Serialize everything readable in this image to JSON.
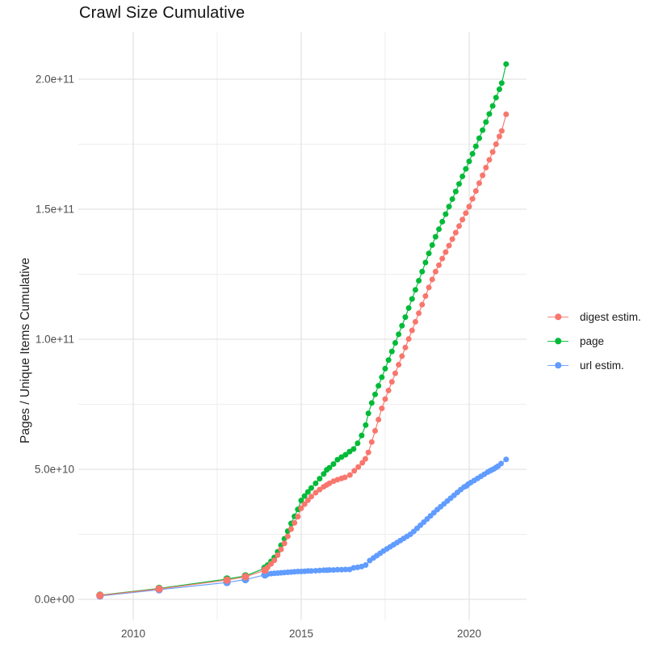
{
  "chart": {
    "title": "Crawl Size Cumulative",
    "y_axis_title": "Pages / Unique Items Cumulative"
  },
  "legend": {
    "items": [
      {
        "label": "digest estim.",
        "color": "#F8766D"
      },
      {
        "label": "page",
        "color": "#00BA38"
      },
      {
        "label": "url estim.",
        "color": "#619CFF"
      }
    ]
  },
  "chart_data": {
    "type": "scatter",
    "title": "Crawl Size Cumulative",
    "xlabel": "",
    "ylabel": "Pages / Unique Items Cumulative",
    "grid": true,
    "legend_position": "right",
    "value_unit": "items, values listed in billions (1e9)",
    "xlim": [
      2008.4,
      2021.7
    ],
    "ylim_billions": [
      -7,
      218
    ],
    "x_ticks": [
      {
        "label": "2010",
        "value": 2010
      },
      {
        "label": "2015",
        "value": 2015
      },
      {
        "label": "2020",
        "value": 2020
      }
    ],
    "x_minor": [
      2012.5,
      2017.5
    ],
    "y_ticks": [
      {
        "label": "0.0e+00",
        "value": 0
      },
      {
        "label": "5.0e+10",
        "value": 50
      },
      {
        "label": "1.0e+11",
        "value": 100
      },
      {
        "label": "1.5e+11",
        "value": 150
      },
      {
        "label": "2.0e+11",
        "value": 200
      }
    ],
    "y_minor": [
      25,
      75,
      125,
      175
    ],
    "series": [
      {
        "name": "digest estim.",
        "color": "#F8766D",
        "points": [
          [
            2009.01,
            1.5
          ],
          [
            2010.77,
            4.0
          ],
          [
            2012.79,
            7.4
          ],
          [
            2013.34,
            8.7
          ],
          [
            2013.92,
            11.2
          ],
          [
            2014.0,
            12.3
          ],
          [
            2014.1,
            13.6
          ],
          [
            2014.2,
            15.0
          ],
          [
            2014.3,
            17.0
          ],
          [
            2014.4,
            19.2
          ],
          [
            2014.5,
            21.5
          ],
          [
            2014.6,
            24.2
          ],
          [
            2014.7,
            27.0
          ],
          [
            2014.8,
            29.4
          ],
          [
            2014.9,
            31.8
          ],
          [
            2015.0,
            35.0
          ],
          [
            2015.1,
            36.6
          ],
          [
            2015.2,
            38.1
          ],
          [
            2015.3,
            39.5
          ],
          [
            2015.43,
            41.0
          ],
          [
            2015.55,
            42.2
          ],
          [
            2015.67,
            43.3
          ],
          [
            2015.76,
            44.0
          ],
          [
            2015.84,
            44.6
          ],
          [
            2015.96,
            45.4
          ],
          [
            2016.08,
            46.0
          ],
          [
            2016.2,
            46.5
          ],
          [
            2016.3,
            46.9
          ],
          [
            2016.45,
            47.8
          ],
          [
            2016.58,
            49.4
          ],
          [
            2016.7,
            50.9
          ],
          [
            2016.82,
            52.5
          ],
          [
            2016.91,
            54.0
          ],
          [
            2017.0,
            56.5
          ],
          [
            2017.1,
            60.5
          ],
          [
            2017.2,
            64.8
          ],
          [
            2017.3,
            69.1
          ],
          [
            2017.4,
            73.4
          ],
          [
            2017.5,
            77.0
          ],
          [
            2017.6,
            80.3
          ],
          [
            2017.7,
            83.6
          ],
          [
            2017.8,
            86.9
          ],
          [
            2017.9,
            90.2
          ],
          [
            2018.0,
            93.5
          ],
          [
            2018.1,
            96.8
          ],
          [
            2018.2,
            100.1
          ],
          [
            2018.3,
            103.4
          ],
          [
            2018.4,
            106.7
          ],
          [
            2018.5,
            110.0
          ],
          [
            2018.6,
            113.3
          ],
          [
            2018.7,
            116.6
          ],
          [
            2018.8,
            119.9
          ],
          [
            2018.9,
            123.0
          ],
          [
            2019.0,
            126.0
          ],
          [
            2019.1,
            128.5
          ],
          [
            2019.2,
            131.0
          ],
          [
            2019.3,
            133.5
          ],
          [
            2019.4,
            136.0
          ],
          [
            2019.5,
            138.5
          ],
          [
            2019.6,
            141.0
          ],
          [
            2019.7,
            143.5
          ],
          [
            2019.8,
            146.0
          ],
          [
            2019.9,
            148.5
          ],
          [
            2020.0,
            151.0
          ],
          [
            2020.1,
            154.0
          ],
          [
            2020.2,
            157.0
          ],
          [
            2020.3,
            160.0
          ],
          [
            2020.4,
            163.0
          ],
          [
            2020.5,
            166.0
          ],
          [
            2020.6,
            169.0
          ],
          [
            2020.7,
            172.0
          ],
          [
            2020.8,
            175.0
          ],
          [
            2020.9,
            178.0
          ],
          [
            2020.97,
            180.1
          ],
          [
            2021.1,
            186.5
          ]
        ]
      },
      {
        "name": "page",
        "color": "#00BA38",
        "points": [
          [
            2009.01,
            1.6
          ],
          [
            2010.77,
            4.2
          ],
          [
            2012.79,
            7.8
          ],
          [
            2013.34,
            9.0
          ],
          [
            2013.92,
            12.0
          ],
          [
            2014.0,
            13.2
          ],
          [
            2014.1,
            14.6
          ],
          [
            2014.2,
            16.1
          ],
          [
            2014.3,
            18.3
          ],
          [
            2014.4,
            20.8
          ],
          [
            2014.5,
            23.3
          ],
          [
            2014.6,
            26.2
          ],
          [
            2014.7,
            29.2
          ],
          [
            2014.8,
            31.9
          ],
          [
            2014.9,
            34.6
          ],
          [
            2015.0,
            38.0
          ],
          [
            2015.1,
            39.7
          ],
          [
            2015.2,
            41.3
          ],
          [
            2015.3,
            42.8
          ],
          [
            2015.43,
            44.6
          ],
          [
            2015.55,
            46.4
          ],
          [
            2015.67,
            48.2
          ],
          [
            2015.76,
            49.8
          ],
          [
            2015.84,
            50.6
          ],
          [
            2015.96,
            52.0
          ],
          [
            2016.08,
            53.7
          ],
          [
            2016.2,
            54.7
          ],
          [
            2016.32,
            55.6
          ],
          [
            2016.44,
            56.8
          ],
          [
            2016.56,
            57.8
          ],
          [
            2016.68,
            60.0
          ],
          [
            2016.8,
            63.0
          ],
          [
            2016.92,
            67.0
          ],
          [
            2017.0,
            71.5
          ],
          [
            2017.1,
            75.5
          ],
          [
            2017.2,
            78.8
          ],
          [
            2017.3,
            82.1
          ],
          [
            2017.4,
            85.4
          ],
          [
            2017.5,
            88.7
          ],
          [
            2017.6,
            92.0
          ],
          [
            2017.7,
            95.3
          ],
          [
            2017.8,
            98.6
          ],
          [
            2017.9,
            101.9
          ],
          [
            2018.0,
            105.2
          ],
          [
            2018.1,
            108.5
          ],
          [
            2018.2,
            112.0
          ],
          [
            2018.3,
            115.5
          ],
          [
            2018.4,
            119.0
          ],
          [
            2018.5,
            122.5
          ],
          [
            2018.6,
            126.0
          ],
          [
            2018.7,
            129.5
          ],
          [
            2018.8,
            133.0
          ],
          [
            2018.9,
            136.2
          ],
          [
            2019.0,
            139.4
          ],
          [
            2019.1,
            142.3
          ],
          [
            2019.2,
            145.2
          ],
          [
            2019.3,
            148.1
          ],
          [
            2019.4,
            151.0
          ],
          [
            2019.5,
            153.9
          ],
          [
            2019.6,
            156.8
          ],
          [
            2019.7,
            159.7
          ],
          [
            2019.8,
            162.6
          ],
          [
            2019.9,
            165.5
          ],
          [
            2020.0,
            168.4
          ],
          [
            2020.1,
            171.3
          ],
          [
            2020.2,
            174.2
          ],
          [
            2020.3,
            177.3
          ],
          [
            2020.4,
            180.4
          ],
          [
            2020.5,
            183.5
          ],
          [
            2020.6,
            186.6
          ],
          [
            2020.7,
            189.7
          ],
          [
            2020.8,
            192.9
          ],
          [
            2020.9,
            196.1
          ],
          [
            2020.97,
            198.5
          ],
          [
            2021.1,
            205.8
          ]
        ]
      },
      {
        "name": "url estim.",
        "color": "#619CFF",
        "points": [
          [
            2009.01,
            1.3
          ],
          [
            2010.77,
            3.7
          ],
          [
            2012.79,
            6.5
          ],
          [
            2013.34,
            7.6
          ],
          [
            2013.92,
            9.4
          ],
          [
            2014.0,
            9.7
          ],
          [
            2014.1,
            9.9
          ],
          [
            2014.2,
            10.0
          ],
          [
            2014.3,
            10.1
          ],
          [
            2014.4,
            10.2
          ],
          [
            2014.5,
            10.3
          ],
          [
            2014.6,
            10.4
          ],
          [
            2014.7,
            10.5
          ],
          [
            2014.8,
            10.6
          ],
          [
            2014.9,
            10.7
          ],
          [
            2015.0,
            10.7
          ],
          [
            2015.1,
            10.8
          ],
          [
            2015.2,
            10.9
          ],
          [
            2015.3,
            10.9
          ],
          [
            2015.43,
            11.0
          ],
          [
            2015.55,
            11.1
          ],
          [
            2015.67,
            11.2
          ],
          [
            2015.76,
            11.2
          ],
          [
            2015.84,
            11.3
          ],
          [
            2015.96,
            11.3
          ],
          [
            2016.08,
            11.4
          ],
          [
            2016.2,
            11.4
          ],
          [
            2016.32,
            11.5
          ],
          [
            2016.44,
            11.5
          ],
          [
            2016.56,
            12.1
          ],
          [
            2016.68,
            12.3
          ],
          [
            2016.8,
            12.6
          ],
          [
            2016.92,
            13.2
          ],
          [
            2017.04,
            14.9
          ],
          [
            2017.15,
            15.9
          ],
          [
            2017.25,
            16.8
          ],
          [
            2017.35,
            17.7
          ],
          [
            2017.45,
            18.6
          ],
          [
            2017.55,
            19.4
          ],
          [
            2017.65,
            20.2
          ],
          [
            2017.75,
            21.0
          ],
          [
            2017.85,
            21.8
          ],
          [
            2017.95,
            22.6
          ],
          [
            2018.05,
            23.4
          ],
          [
            2018.15,
            24.2
          ],
          [
            2018.25,
            25.0
          ],
          [
            2018.35,
            26.1
          ],
          [
            2018.45,
            27.3
          ],
          [
            2018.55,
            28.5
          ],
          [
            2018.65,
            29.7
          ],
          [
            2018.75,
            30.9
          ],
          [
            2018.85,
            32.1
          ],
          [
            2018.95,
            33.3
          ],
          [
            2019.05,
            34.5
          ],
          [
            2019.15,
            35.6
          ],
          [
            2019.25,
            36.7
          ],
          [
            2019.35,
            37.8
          ],
          [
            2019.45,
            38.9
          ],
          [
            2019.55,
            40.0
          ],
          [
            2019.65,
            41.1
          ],
          [
            2019.75,
            42.2
          ],
          [
            2019.85,
            43.2
          ],
          [
            2019.92,
            43.6
          ],
          [
            2019.97,
            44.3
          ],
          [
            2020.05,
            44.9
          ],
          [
            2020.15,
            45.7
          ],
          [
            2020.25,
            46.5
          ],
          [
            2020.35,
            47.3
          ],
          [
            2020.45,
            48.1
          ],
          [
            2020.55,
            48.9
          ],
          [
            2020.62,
            49.4
          ],
          [
            2020.68,
            49.8
          ],
          [
            2020.74,
            50.2
          ],
          [
            2020.8,
            50.7
          ],
          [
            2020.86,
            51.2
          ],
          [
            2020.95,
            52.2
          ],
          [
            2021.1,
            53.8
          ]
        ]
      }
    ]
  }
}
